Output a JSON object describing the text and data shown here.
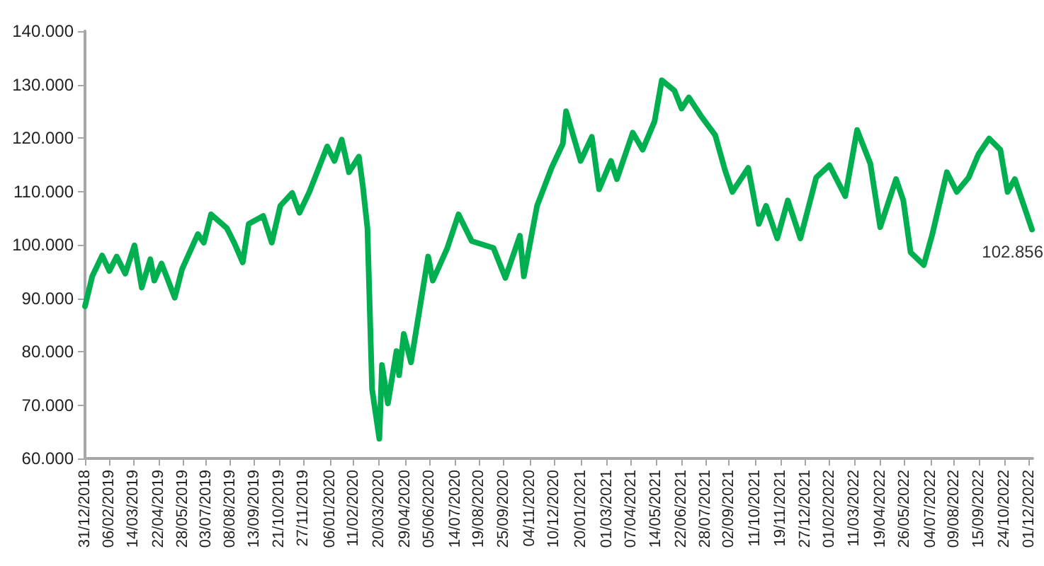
{
  "chart_data": {
    "type": "line",
    "color": "#00b050",
    "grid": false,
    "marker": "none",
    "line_style": "solid",
    "xlim": [
      "2018-12-31",
      "2022-12-06"
    ],
    "xticks": [
      {
        "value": "2018-12-31",
        "label": "31/12/2018"
      },
      {
        "value": "2019-02-06",
        "label": "06/02/2019"
      },
      {
        "value": "2019-03-14",
        "label": "14/03/2019"
      },
      {
        "value": "2019-04-22",
        "label": "22/04/2019"
      },
      {
        "value": "2019-05-28",
        "label": "28/05/2019"
      },
      {
        "value": "2019-07-03",
        "label": "03/07/2019"
      },
      {
        "value": "2019-08-08",
        "label": "08/08/2019"
      },
      {
        "value": "2019-09-13",
        "label": "13/09/2019"
      },
      {
        "value": "2019-10-21",
        "label": "21/10/2019"
      },
      {
        "value": "2019-11-27",
        "label": "27/11/2019"
      },
      {
        "value": "2020-01-06",
        "label": "06/01/2020"
      },
      {
        "value": "2020-02-11",
        "label": "11/02/2020"
      },
      {
        "value": "2020-03-20",
        "label": "20/03/2020"
      },
      {
        "value": "2020-04-29",
        "label": "29/04/2020"
      },
      {
        "value": "2020-06-05",
        "label": "05/06/2020"
      },
      {
        "value": "2020-07-14",
        "label": "14/07/2020"
      },
      {
        "value": "2020-08-19",
        "label": "19/08/2020"
      },
      {
        "value": "2020-09-25",
        "label": "25/09/2020"
      },
      {
        "value": "2020-11-04",
        "label": "04/11/2020"
      },
      {
        "value": "2020-12-10",
        "label": "10/12/2020"
      },
      {
        "value": "2021-01-20",
        "label": "20/01/2021"
      },
      {
        "value": "2021-03-01",
        "label": "01/03/2021"
      },
      {
        "value": "2021-04-07",
        "label": "07/04/2021"
      },
      {
        "value": "2021-05-14",
        "label": "14/05/2021"
      },
      {
        "value": "2021-06-22",
        "label": "22/06/2021"
      },
      {
        "value": "2021-07-28",
        "label": "28/07/2021"
      },
      {
        "value": "2021-09-02",
        "label": "02/09/2021"
      },
      {
        "value": "2021-10-11",
        "label": "11/10/2021"
      },
      {
        "value": "2021-11-19",
        "label": "19/11/2021"
      },
      {
        "value": "2021-12-27",
        "label": "27/12/2021"
      },
      {
        "value": "2022-02-01",
        "label": "01/02/2022"
      },
      {
        "value": "2022-03-11",
        "label": "11/03/2022"
      },
      {
        "value": "2022-04-19",
        "label": "19/04/2022"
      },
      {
        "value": "2022-05-26",
        "label": "26/05/2022"
      },
      {
        "value": "2022-07-04",
        "label": "04/07/2022"
      },
      {
        "value": "2022-08-09",
        "label": "09/08/2022"
      },
      {
        "value": "2022-09-15",
        "label": "15/09/2022"
      },
      {
        "value": "2022-10-24",
        "label": "24/10/2022"
      },
      {
        "value": "2022-12-01",
        "label": "01/12/2022"
      }
    ],
    "ylim": [
      60,
      140
    ],
    "yticks": [
      {
        "value": 60,
        "label": "60.000"
      },
      {
        "value": 70,
        "label": "70.000"
      },
      {
        "value": 80,
        "label": "80.000"
      },
      {
        "value": 90,
        "label": "90.000"
      },
      {
        "value": 100,
        "label": "100.000"
      },
      {
        "value": 110,
        "label": "110.000"
      },
      {
        "value": 120,
        "label": "120.000"
      },
      {
        "value": 130,
        "label": "130.000"
      },
      {
        "value": 140,
        "label": "140.000"
      }
    ],
    "x": [
      "2018-12-31",
      "2019-01-11",
      "2019-01-26",
      "2019-02-06",
      "2019-02-17",
      "2019-03-02",
      "2019-03-16",
      "2019-03-27",
      "2019-04-09",
      "2019-04-15",
      "2019-04-26",
      "2019-05-16",
      "2019-05-27",
      "2019-06-20",
      "2019-06-29",
      "2019-07-10",
      "2019-08-03",
      "2019-08-14",
      "2019-08-27",
      "2019-09-05",
      "2019-09-27",
      "2019-10-10",
      "2019-10-23",
      "2019-11-10",
      "2019-11-21",
      "2019-12-06",
      "2020-01-02",
      "2020-01-13",
      "2020-01-24",
      "2020-02-04",
      "2020-02-19",
      "2020-02-25",
      "2020-03-03",
      "2020-03-10",
      "2020-03-21",
      "2020-03-25",
      "2020-04-03",
      "2020-04-16",
      "2020-04-20",
      "2020-04-27",
      "2020-05-08",
      "2020-06-03",
      "2020-06-10",
      "2020-07-02",
      "2020-07-19",
      "2020-08-08",
      "2020-09-10",
      "2020-09-28",
      "2020-10-20",
      "2020-10-26",
      "2020-11-15",
      "2020-12-07",
      "2020-12-24",
      "2020-12-29",
      "2021-01-20",
      "2021-02-06",
      "2021-02-17",
      "2021-03-07",
      "2021-03-16",
      "2021-04-09",
      "2021-04-24",
      "2021-05-12",
      "2021-05-23",
      "2021-06-11",
      "2021-06-22",
      "2021-07-03",
      "2021-07-21",
      "2021-08-12",
      "2021-08-27",
      "2021-09-07",
      "2021-10-01",
      "2021-10-17",
      "2021-10-28",
      "2021-11-14",
      "2021-11-30",
      "2021-12-19",
      "2022-01-12",
      "2022-02-01",
      "2022-02-25",
      "2022-03-15",
      "2022-04-04",
      "2022-04-19",
      "2022-05-13",
      "2022-05-24",
      "2022-06-04",
      "2022-06-24",
      "2022-07-07",
      "2022-07-29",
      "2022-08-13",
      "2022-08-31",
      "2022-09-15",
      "2022-10-01",
      "2022-10-18",
      "2022-10-29",
      "2022-11-09",
      "2022-12-05"
    ],
    "values": [
      88.5,
      94.1,
      98.0,
      95.1,
      97.8,
      94.6,
      99.9,
      92.0,
      97.3,
      93.3,
      96.5,
      90.1,
      95.4,
      102.0,
      100.4,
      105.7,
      103.1,
      100.4,
      96.7,
      103.9,
      105.4,
      100.4,
      107.3,
      109.7,
      106.0,
      109.9,
      118.4,
      115.7,
      119.7,
      113.6,
      116.5,
      111.0,
      103.1,
      73.0,
      63.7,
      77.5,
      70.3,
      80.1,
      75.6,
      83.3,
      78.0,
      97.8,
      93.3,
      99.4,
      105.7,
      100.7,
      99.4,
      93.8,
      101.7,
      94.1,
      107.3,
      114.4,
      118.9,
      125.0,
      115.7,
      120.2,
      110.4,
      115.7,
      112.3,
      121.0,
      117.8,
      123.1,
      130.8,
      128.9,
      125.5,
      127.6,
      124.2,
      120.5,
      113.9,
      109.9,
      114.4,
      103.9,
      107.3,
      101.2,
      108.3,
      101.2,
      112.6,
      114.9,
      109.1,
      121.5,
      115.2,
      103.3,
      112.3,
      108.3,
      98.6,
      96.2,
      102.0,
      113.6,
      109.9,
      112.6,
      117.0,
      119.9,
      117.8,
      109.9,
      112.3,
      102.856
    ],
    "value_labels": [
      null,
      null,
      null,
      null,
      null,
      null,
      null,
      null,
      null,
      null,
      null,
      null,
      null,
      null,
      null,
      null,
      null,
      null,
      null,
      null,
      null,
      null,
      null,
      null,
      null,
      null,
      null,
      null,
      null,
      null,
      null,
      null,
      null,
      null,
      null,
      null,
      null,
      null,
      null,
      null,
      null,
      null,
      null,
      null,
      null,
      null,
      null,
      null,
      null,
      null,
      null,
      null,
      null,
      null,
      null,
      null,
      null,
      null,
      null,
      null,
      null,
      null,
      null,
      null,
      null,
      null,
      null,
      null,
      null,
      null,
      null,
      null,
      null,
      null,
      null,
      null,
      null,
      null,
      null,
      null,
      null,
      null,
      null,
      null,
      null,
      null,
      null,
      null,
      null,
      null,
      null,
      null,
      null,
      null,
      null,
      "102.856"
    ]
  }
}
